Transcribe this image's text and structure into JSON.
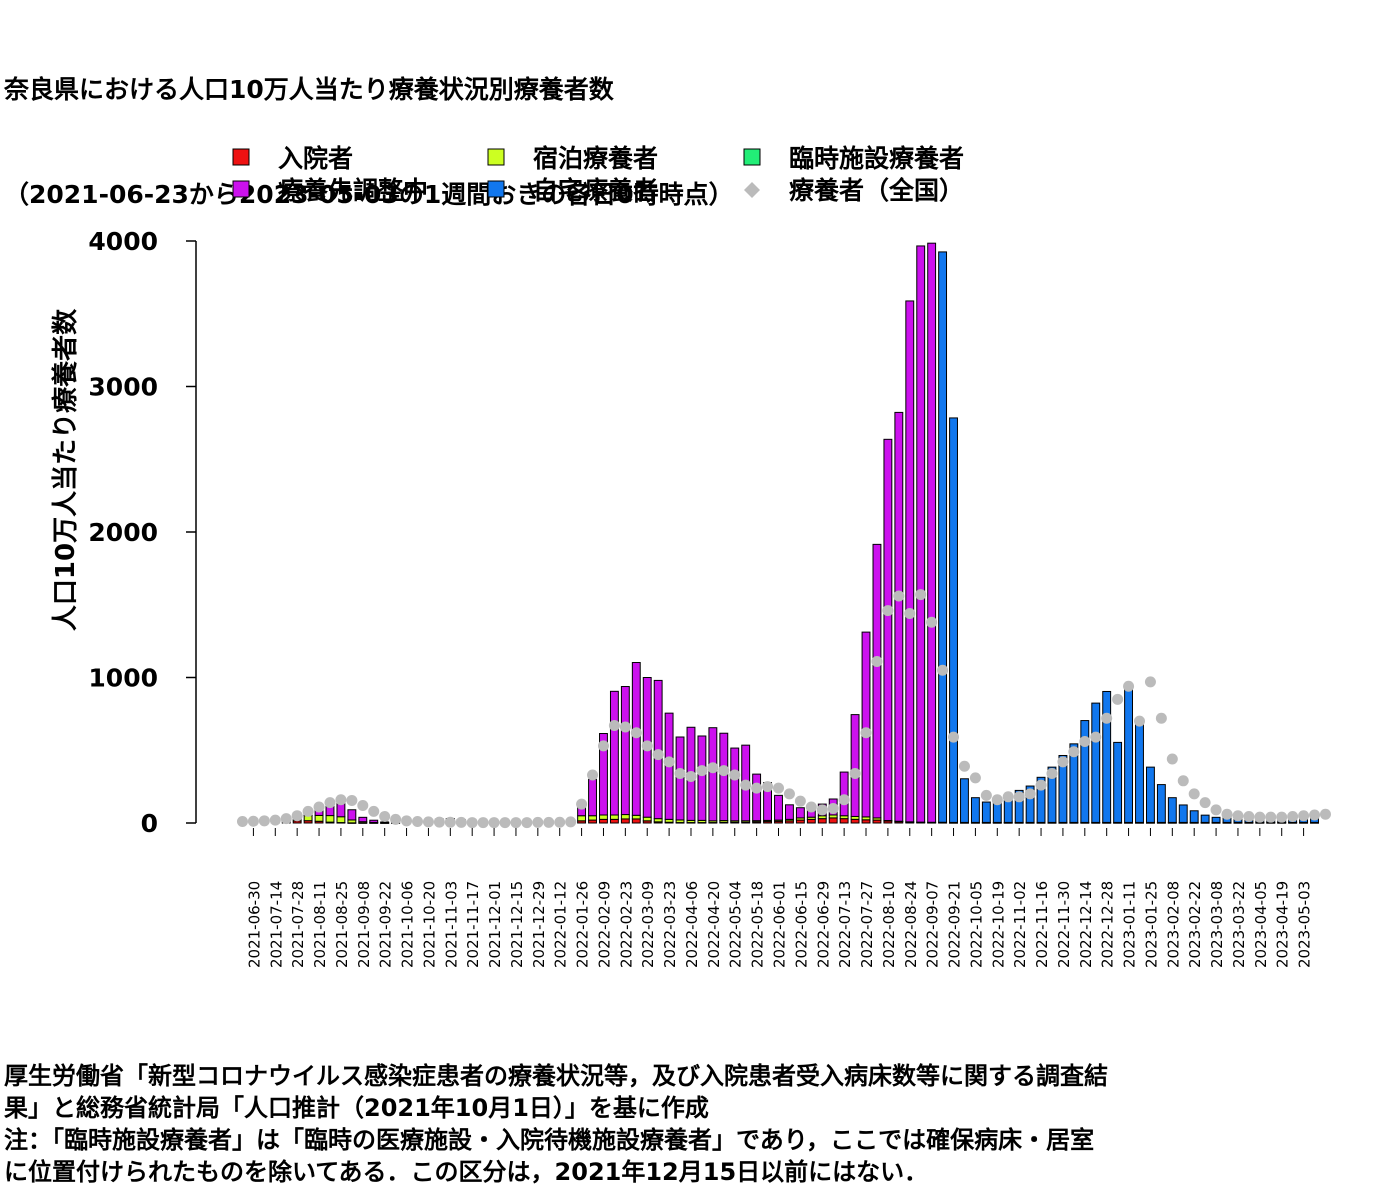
{
  "title": {
    "line1": "奈良県における人口10万人当たり療養状況別療養者数",
    "line2": "（2021-06-23から2023-05-03の1週間おきの各日0時時点）"
  },
  "notes": {
    "line1": "厚生労働省「新型コロナウイルス感染症患者の療養状況等，及び入院患者受入病床数等に関する調査結",
    "line2": "果」と総務省統計局「人口推計（2021年10月1日）」を基に作成",
    "line3": "注：「臨時施設療養者」は「臨時の医療施設・入院待機施設療養者」であり，ここでは確保病床・居室",
    "line4": "に位置付けられたものを除いてある．この区分は，2021年12月15日以前にはない．"
  },
  "chart_data": {
    "type": "bar",
    "stacked": true,
    "ylabel": "人口10万人当たり療養者数",
    "ylim": [
      0,
      4000
    ],
    "yticks": [
      0,
      1000,
      2000,
      3000,
      4000
    ],
    "legend_position": "top",
    "x_tick_labels": [
      "2021-06-30",
      "2021-07-14",
      "2021-07-28",
      "2021-08-11",
      "2021-08-25",
      "2021-09-08",
      "2021-09-22",
      "2021-10-06",
      "2021-10-20",
      "2021-11-03",
      "2021-11-17",
      "2021-12-01",
      "2021-12-15",
      "2021-12-29",
      "2022-01-12",
      "2022-01-26",
      "2022-02-09",
      "2022-02-23",
      "2022-03-09",
      "2022-03-23",
      "2022-04-06",
      "2022-04-20",
      "2022-05-04",
      "2022-05-18",
      "2022-06-01",
      "2022-06-15",
      "2022-06-29",
      "2022-07-13",
      "2022-07-27",
      "2022-08-10",
      "2022-08-24",
      "2022-09-07",
      "2022-09-21",
      "2022-10-05",
      "2022-10-19",
      "2022-11-02",
      "2022-11-16",
      "2022-11-30",
      "2022-12-14",
      "2022-12-28",
      "2023-01-11",
      "2023-01-25",
      "2023-02-08",
      "2023-02-22",
      "2023-03-08",
      "2023-03-22",
      "2023-04-05",
      "2023-04-19",
      "2023-05-03"
    ],
    "series": [
      {
        "name": "入院者",
        "color": "#ee1111",
        "values": [
          2,
          2,
          3,
          5,
          10,
          14,
          16,
          12,
          6,
          3,
          1,
          1,
          1,
          1,
          1,
          1,
          8,
          20,
          25,
          28,
          22,
          18,
          14,
          12,
          10,
          12,
          8,
          5,
          3,
          3,
          5,
          15,
          20,
          25,
          25,
          28,
          28,
          15,
          8,
          5,
          3,
          3,
          3,
          3,
          5,
          5,
          5,
          8,
          10,
          12,
          15,
          20,
          25,
          30,
          35,
          30,
          25,
          22,
          20,
          15,
          10,
          6,
          4,
          3,
          3,
          2,
          2,
          2,
          2,
          2,
          2,
          2,
          2,
          2,
          2,
          2,
          2,
          2,
          2,
          2,
          2,
          2,
          2,
          2,
          2,
          2,
          2,
          2,
          2,
          2,
          2,
          2,
          2,
          2,
          2,
          2,
          2,
          2,
          2
        ]
      },
      {
        "name": "宿泊療養者",
        "color": "#ccff22",
        "values": [
          1,
          1,
          2,
          5,
          15,
          25,
          35,
          40,
          45,
          40,
          20,
          8,
          3,
          1,
          1,
          1,
          1,
          1,
          1,
          1,
          1,
          1,
          1,
          1,
          1,
          1,
          1,
          1,
          1,
          1,
          2,
          35,
          30,
          30,
          30,
          30,
          25,
          25,
          22,
          20,
          18,
          15,
          15,
          12,
          12,
          10,
          10,
          8,
          8,
          8,
          10,
          15,
          15,
          20,
          20,
          20,
          20,
          20,
          15,
          2,
          2,
          2,
          2,
          2,
          2,
          2,
          2,
          2,
          2,
          2,
          2,
          2,
          2,
          2,
          2,
          2,
          2,
          2,
          2,
          2,
          2,
          2,
          2,
          2,
          2,
          2,
          2,
          2,
          2,
          2,
          2,
          2,
          2,
          2,
          2,
          2,
          2,
          2,
          2
        ]
      },
      {
        "name": "臨時施設療養者",
        "color": "#22ee77",
        "values": [
          0,
          0,
          0,
          0,
          0,
          0,
          0,
          0,
          0,
          0,
          0,
          0,
          0,
          0,
          0,
          0,
          0,
          0,
          0,
          0,
          0,
          0,
          0,
          0,
          0,
          0,
          0,
          0,
          0,
          0,
          0,
          0,
          0,
          0,
          0,
          0,
          0,
          0,
          0,
          0,
          0,
          0,
          0,
          0,
          0,
          0,
          0,
          0,
          0,
          0,
          0,
          0,
          0,
          0,
          0,
          0,
          0,
          0,
          0,
          0,
          0,
          0,
          0,
          0,
          0,
          0,
          0,
          0,
          0,
          0,
          0,
          0,
          0,
          0,
          0,
          0,
          0,
          0,
          0,
          0,
          0,
          0,
          0,
          0,
          0,
          0,
          0,
          0,
          0,
          0,
          0,
          0,
          0,
          0,
          0,
          0,
          0,
          0,
          0
        ]
      },
      {
        "name": "療養先調整中",
        "color": "#cc11ee",
        "values": [
          0,
          0,
          0,
          10,
          15,
          30,
          45,
          55,
          70,
          90,
          70,
          30,
          15,
          5,
          3,
          2,
          1,
          1,
          1,
          1,
          1,
          1,
          1,
          1,
          1,
          1,
          1,
          1,
          1,
          1,
          2,
          60,
          250,
          560,
          850,
          880,
          1050,
          960,
          950,
          730,
          570,
          640,
          580,
          640,
          600,
          500,
          520,
          320,
          260,
          170,
          100,
          70,
          60,
          80,
          110,
          300,
          700,
          1270,
          1880,
          2620,
          2810,
          3580,
          3960,
          3980,
          0,
          0,
          0,
          0,
          0,
          0,
          0,
          0,
          0,
          0,
          0,
          0,
          0,
          0,
          0,
          0,
          0,
          0,
          0,
          0,
          0,
          0,
          0,
          0,
          0,
          0,
          0,
          0,
          0,
          0,
          0,
          0,
          0,
          0,
          0
        ]
      },
      {
        "name": "自宅療養者",
        "color": "#1177ee",
        "values": [
          0,
          0,
          0,
          0,
          0,
          0,
          0,
          0,
          0,
          0,
          0,
          0,
          0,
          0,
          0,
          0,
          0,
          0,
          0,
          0,
          0,
          0,
          0,
          0,
          0,
          0,
          0,
          0,
          0,
          0,
          0,
          0,
          0,
          0,
          0,
          0,
          0,
          0,
          0,
          0,
          0,
          0,
          0,
          0,
          0,
          0,
          0,
          0,
          0,
          0,
          0,
          0,
          0,
          0,
          0,
          0,
          0,
          0,
          0,
          0,
          0,
          0,
          0,
          0,
          3920,
          2780,
          300,
          170,
          140,
          160,
          180,
          220,
          250,
          310,
          380,
          460,
          540,
          700,
          820,
          900,
          550,
          920,
          680,
          380,
          260,
          170,
          120,
          80,
          50,
          35,
          30,
          25,
          25,
          30,
          40,
          45,
          50,
          55,
          60
        ]
      }
    ],
    "national": {
      "name": "療養者（全国）",
      "color": "#bbbbbb",
      "values": [
        10,
        12,
        15,
        20,
        30,
        50,
        80,
        110,
        140,
        160,
        155,
        120,
        80,
        45,
        25,
        15,
        10,
        8,
        6,
        5,
        4,
        3,
        3,
        3,
        3,
        3,
        3,
        4,
        4,
        5,
        8,
        130,
        330,
        530,
        670,
        660,
        620,
        530,
        470,
        420,
        340,
        320,
        360,
        380,
        360,
        330,
        260,
        240,
        250,
        240,
        200,
        150,
        110,
        90,
        100,
        160,
        340,
        620,
        1110,
        1460,
        1560,
        1440,
        1570,
        1380,
        1050,
        590,
        390,
        310,
        190,
        160,
        180,
        180,
        200,
        260,
        340,
        420,
        490,
        560,
        590,
        720,
        850,
        940,
        700,
        970,
        720,
        440,
        290,
        200,
        140,
        90,
        60,
        50,
        45,
        40,
        40,
        40,
        45,
        50,
        55,
        60
      ]
    }
  }
}
